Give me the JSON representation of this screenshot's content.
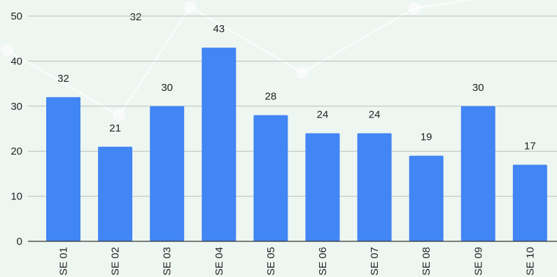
{
  "chart_data": {
    "type": "bar",
    "categories": [
      "SE 01",
      "SE 02",
      "SE 03",
      "SE 04",
      "SE 05",
      "SE 06",
      "SE 07",
      "SE 08",
      "SE 09",
      "SE 10"
    ],
    "values": [
      32,
      21,
      30,
      43,
      28,
      24,
      24,
      19,
      30,
      17
    ],
    "decor_line_label": "32",
    "ylim": [
      0,
      50
    ],
    "yticks": [
      0,
      10,
      20,
      30,
      40,
      50
    ],
    "grid": true,
    "colors": {
      "bar": "#4285f4",
      "background": "#eef6f1",
      "decor_line": "#ffffff"
    }
  }
}
